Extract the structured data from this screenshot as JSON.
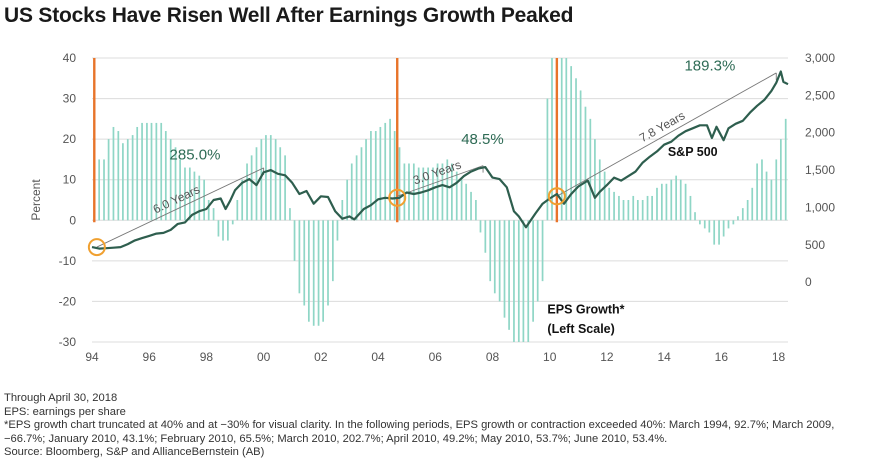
{
  "title": "US Stocks Have Risen Well After Earnings Growth Peaked",
  "notes": {
    "through": "Through April 30, 2018",
    "eps_def": "EPS: earnings per share",
    "footnote": "*EPS growth chart truncated at 40% and at −30% for visual clarity. In the following periods, EPS growth or contraction exceeded 40%: March 1994, 92.7%; March 2009, −66.7%; January 2010, 43.1%; February 2010, 65.5%; March 2010, 202.7%; April 2010, 49.2%; May 2010, 53.7%; June 2010, 53.4%.",
    "source": "Source: Bloomberg, S&P and AllianceBernstein (AB)"
  },
  "colors": {
    "bars": "#8fd6c6",
    "line": "#2e5e4e",
    "peak_marker": "#e8742a",
    "circle": "#f0a030",
    "annotation_text": "#2e6b55"
  },
  "chart_data": {
    "type": "bar+line",
    "ylabel": "Percent",
    "left_ylim": [
      -30,
      40
    ],
    "left_ticks": [
      -30,
      -20,
      -10,
      0,
      10,
      20,
      30,
      40
    ],
    "right_ylim": [
      -800,
      3000
    ],
    "right_ticks": [
      0,
      500,
      1000,
      1500,
      2000,
      2500,
      3000
    ],
    "right_tick_labels": [
      "0",
      "500",
      "1,000",
      "1,500",
      "2,000",
      "2,500",
      "3,000"
    ],
    "xlim": [
      1994,
      2018.33
    ],
    "x_ticks": [
      1994,
      1996,
      1998,
      2000,
      2002,
      2004,
      2006,
      2008,
      2010,
      2012,
      2014,
      2016,
      2018
    ],
    "x_tick_labels": [
      "94",
      "96",
      "98",
      "00",
      "02",
      "04",
      "06",
      "08",
      "10",
      "12",
      "14",
      "16",
      "18"
    ],
    "series": [
      {
        "name": "EPS Growth* (Left Scale)",
        "type": "bar",
        "points": [
          [
            1994.08,
            40
          ],
          [
            1994.25,
            15
          ],
          [
            1994.42,
            15
          ],
          [
            1994.58,
            20
          ],
          [
            1994.75,
            23
          ],
          [
            1994.92,
            22
          ],
          [
            1995.08,
            19
          ],
          [
            1995.25,
            20
          ],
          [
            1995.42,
            21
          ],
          [
            1995.58,
            23
          ],
          [
            1995.75,
            24
          ],
          [
            1995.92,
            24
          ],
          [
            1996.08,
            24
          ],
          [
            1996.25,
            24
          ],
          [
            1996.42,
            24
          ],
          [
            1996.58,
            22
          ],
          [
            1996.75,
            20
          ],
          [
            1996.92,
            18
          ],
          [
            1997.08,
            15
          ],
          [
            1997.25,
            13
          ],
          [
            1997.42,
            13
          ],
          [
            1997.58,
            12
          ],
          [
            1997.75,
            11
          ],
          [
            1997.92,
            10
          ],
          [
            1998.08,
            5
          ],
          [
            1998.25,
            3
          ],
          [
            1998.42,
            -4
          ],
          [
            1998.58,
            -5
          ],
          [
            1998.75,
            -5
          ],
          [
            1998.92,
            -1
          ],
          [
            1999.08,
            5
          ],
          [
            1999.25,
            10
          ],
          [
            1999.42,
            14
          ],
          [
            1999.58,
            16
          ],
          [
            1999.75,
            18
          ],
          [
            1999.92,
            20
          ],
          [
            2000.08,
            21
          ],
          [
            2000.25,
            21
          ],
          [
            2000.42,
            20
          ],
          [
            2000.58,
            18
          ],
          [
            2000.75,
            16
          ],
          [
            2000.92,
            3
          ],
          [
            2001.08,
            -10
          ],
          [
            2001.25,
            -18
          ],
          [
            2001.42,
            -21
          ],
          [
            2001.58,
            -25
          ],
          [
            2001.75,
            -26
          ],
          [
            2001.92,
            -26
          ],
          [
            2002.08,
            -25
          ],
          [
            2002.25,
            -21
          ],
          [
            2002.42,
            -15
          ],
          [
            2002.58,
            -5
          ],
          [
            2002.75,
            5
          ],
          [
            2002.92,
            10
          ],
          [
            2003.08,
            14
          ],
          [
            2003.25,
            16
          ],
          [
            2003.42,
            18
          ],
          [
            2003.58,
            20
          ],
          [
            2003.75,
            22
          ],
          [
            2003.92,
            22
          ],
          [
            2004.08,
            23
          ],
          [
            2004.25,
            24
          ],
          [
            2004.42,
            25
          ],
          [
            2004.58,
            22
          ],
          [
            2004.75,
            18
          ],
          [
            2004.92,
            14
          ],
          [
            2005.08,
            14
          ],
          [
            2005.25,
            14
          ],
          [
            2005.42,
            13
          ],
          [
            2005.58,
            13
          ],
          [
            2005.75,
            13
          ],
          [
            2005.92,
            13
          ],
          [
            2006.08,
            14
          ],
          [
            2006.25,
            14
          ],
          [
            2006.42,
            15
          ],
          [
            2006.58,
            14
          ],
          [
            2006.75,
            12
          ],
          [
            2006.92,
            10
          ],
          [
            2007.08,
            9
          ],
          [
            2007.25,
            7
          ],
          [
            2007.42,
            5
          ],
          [
            2007.58,
            -3
          ],
          [
            2007.75,
            -8
          ],
          [
            2007.92,
            -15
          ],
          [
            2008.08,
            -18
          ],
          [
            2008.25,
            -20
          ],
          [
            2008.42,
            -24
          ],
          [
            2008.58,
            -27
          ],
          [
            2008.75,
            -30
          ],
          [
            2008.92,
            -30
          ],
          [
            2009.08,
            -30
          ],
          [
            2009.25,
            -30
          ],
          [
            2009.42,
            -25
          ],
          [
            2009.58,
            -20
          ],
          [
            2009.75,
            -15
          ],
          [
            2009.92,
            30
          ],
          [
            2010.08,
            40
          ],
          [
            2010.25,
            40
          ],
          [
            2010.42,
            40
          ],
          [
            2010.58,
            40
          ],
          [
            2010.75,
            38
          ],
          [
            2010.92,
            35
          ],
          [
            2011.08,
            32
          ],
          [
            2011.25,
            28
          ],
          [
            2011.42,
            25
          ],
          [
            2011.58,
            20
          ],
          [
            2011.75,
            15
          ],
          [
            2011.92,
            12
          ],
          [
            2012.08,
            8
          ],
          [
            2012.25,
            7
          ],
          [
            2012.42,
            6
          ],
          [
            2012.58,
            5
          ],
          [
            2012.75,
            5
          ],
          [
            2012.92,
            6
          ],
          [
            2013.08,
            5
          ],
          [
            2013.25,
            5
          ],
          [
            2013.42,
            6
          ],
          [
            2013.58,
            6
          ],
          [
            2013.75,
            8
          ],
          [
            2013.92,
            9
          ],
          [
            2014.08,
            9
          ],
          [
            2014.25,
            10
          ],
          [
            2014.42,
            11
          ],
          [
            2014.58,
            10
          ],
          [
            2014.75,
            9
          ],
          [
            2014.92,
            6
          ],
          [
            2015.08,
            2
          ],
          [
            2015.25,
            -1
          ],
          [
            2015.42,
            -2
          ],
          [
            2015.58,
            -3
          ],
          [
            2015.75,
            -6
          ],
          [
            2015.92,
            -6
          ],
          [
            2016.08,
            -4
          ],
          [
            2016.25,
            -2
          ],
          [
            2016.42,
            -1
          ],
          [
            2016.58,
            1
          ],
          [
            2016.75,
            3
          ],
          [
            2016.92,
            5
          ],
          [
            2017.08,
            8
          ],
          [
            2017.25,
            14
          ],
          [
            2017.42,
            15
          ],
          [
            2017.58,
            12
          ],
          [
            2017.75,
            10
          ],
          [
            2017.92,
            15
          ],
          [
            2018.08,
            20
          ],
          [
            2018.25,
            25
          ]
        ]
      },
      {
        "name": "S&P 500",
        "type": "line",
        "points": [
          [
            1994.0,
            470
          ],
          [
            1994.25,
            450
          ],
          [
            1994.5,
            455
          ],
          [
            1994.75,
            462
          ],
          [
            1995.0,
            470
          ],
          [
            1995.25,
            510
          ],
          [
            1995.5,
            560
          ],
          [
            1995.75,
            590
          ],
          [
            1996.0,
            620
          ],
          [
            1996.25,
            650
          ],
          [
            1996.5,
            660
          ],
          [
            1996.75,
            700
          ],
          [
            1997.0,
            780
          ],
          [
            1997.25,
            800
          ],
          [
            1997.5,
            900
          ],
          [
            1997.75,
            950
          ],
          [
            1998.0,
            980
          ],
          [
            1998.25,
            1100
          ],
          [
            1998.5,
            1120
          ],
          [
            1998.67,
            980
          ],
          [
            1998.83,
            1090
          ],
          [
            1999.0,
            1230
          ],
          [
            1999.25,
            1330
          ],
          [
            1999.5,
            1380
          ],
          [
            1999.75,
            1300
          ],
          [
            2000.0,
            1470
          ],
          [
            2000.25,
            1500
          ],
          [
            2000.5,
            1450
          ],
          [
            2000.75,
            1430
          ],
          [
            2001.0,
            1330
          ],
          [
            2001.25,
            1180
          ],
          [
            2001.5,
            1220
          ],
          [
            2001.75,
            1050
          ],
          [
            2002.0,
            1150
          ],
          [
            2002.25,
            1140
          ],
          [
            2002.5,
            950
          ],
          [
            2002.75,
            850
          ],
          [
            2003.0,
            880
          ],
          [
            2003.17,
            840
          ],
          [
            2003.5,
            980
          ],
          [
            2003.75,
            1030
          ],
          [
            2004.0,
            1110
          ],
          [
            2004.25,
            1130
          ],
          [
            2004.5,
            1120
          ],
          [
            2004.75,
            1130
          ],
          [
            2005.0,
            1200
          ],
          [
            2005.25,
            1180
          ],
          [
            2005.5,
            1200
          ],
          [
            2005.75,
            1230
          ],
          [
            2006.0,
            1270
          ],
          [
            2006.25,
            1300
          ],
          [
            2006.5,
            1270
          ],
          [
            2006.75,
            1330
          ],
          [
            2007.0,
            1420
          ],
          [
            2007.25,
            1480
          ],
          [
            2007.5,
            1520
          ],
          [
            2007.75,
            1540
          ],
          [
            2008.0,
            1400
          ],
          [
            2008.25,
            1380
          ],
          [
            2008.5,
            1270
          ],
          [
            2008.75,
            950
          ],
          [
            2008.92,
            880
          ],
          [
            2009.17,
            735
          ],
          [
            2009.5,
            920
          ],
          [
            2009.75,
            1050
          ],
          [
            2010.0,
            1120
          ],
          [
            2010.25,
            1180
          ],
          [
            2010.5,
            1050
          ],
          [
            2010.75,
            1180
          ],
          [
            2011.0,
            1280
          ],
          [
            2011.33,
            1360
          ],
          [
            2011.58,
            1130
          ],
          [
            2011.75,
            1210
          ],
          [
            2012.0,
            1300
          ],
          [
            2012.25,
            1400
          ],
          [
            2012.5,
            1360
          ],
          [
            2012.75,
            1420
          ],
          [
            2013.0,
            1480
          ],
          [
            2013.25,
            1600
          ],
          [
            2013.5,
            1680
          ],
          [
            2013.75,
            1750
          ],
          [
            2014.0,
            1840
          ],
          [
            2014.25,
            1880
          ],
          [
            2014.5,
            1960
          ],
          [
            2014.75,
            2020
          ],
          [
            2015.0,
            2060
          ],
          [
            2015.25,
            2100
          ],
          [
            2015.5,
            2100
          ],
          [
            2015.67,
            1930
          ],
          [
            2015.83,
            2080
          ],
          [
            2016.08,
            1900
          ],
          [
            2016.25,
            2060
          ],
          [
            2016.5,
            2120
          ],
          [
            2016.75,
            2160
          ],
          [
            2017.0,
            2270
          ],
          [
            2017.25,
            2360
          ],
          [
            2017.5,
            2440
          ],
          [
            2017.75,
            2560
          ],
          [
            2017.92,
            2670
          ],
          [
            2018.08,
            2820
          ],
          [
            2018.17,
            2680
          ],
          [
            2018.33,
            2650
          ]
        ]
      }
    ],
    "peak_lines": [
      1994.08,
      2004.67,
      2010.25
    ],
    "circles": [
      {
        "x": 1994.17,
        "y": 470
      },
      {
        "x": 2004.67,
        "y": 1130
      },
      {
        "x": 2010.25,
        "y": 1150
      }
    ],
    "trend_lines": [
      {
        "from": [
          1994.17,
          470
        ],
        "to": [
          2000.0,
          1530
        ],
        "label": "6.0 Years"
      },
      {
        "from": [
          2004.67,
          1150
        ],
        "to": [
          2007.67,
          1560
        ],
        "label": "3.0 Years"
      },
      {
        "from": [
          2010.25,
          1150
        ],
        "to": [
          2017.92,
          2800
        ],
        "label": "7.8 Years"
      }
    ],
    "annotations": [
      {
        "text": "285.0%",
        "x": 1997.6,
        "y": 1640
      },
      {
        "text": "48.5%",
        "x": 2007.65,
        "y": 1850
      },
      {
        "text": "189.3%",
        "x": 2015.6,
        "y": 2830
      },
      {
        "text": "S&P 500",
        "x": 2015.0,
        "y": 1690
      },
      {
        "text": "EPS Growth*",
        "x": 2009.92,
        "y": -23
      },
      {
        "text": "(Left Scale)",
        "x": 2009.92,
        "y": -27.8
      }
    ]
  }
}
